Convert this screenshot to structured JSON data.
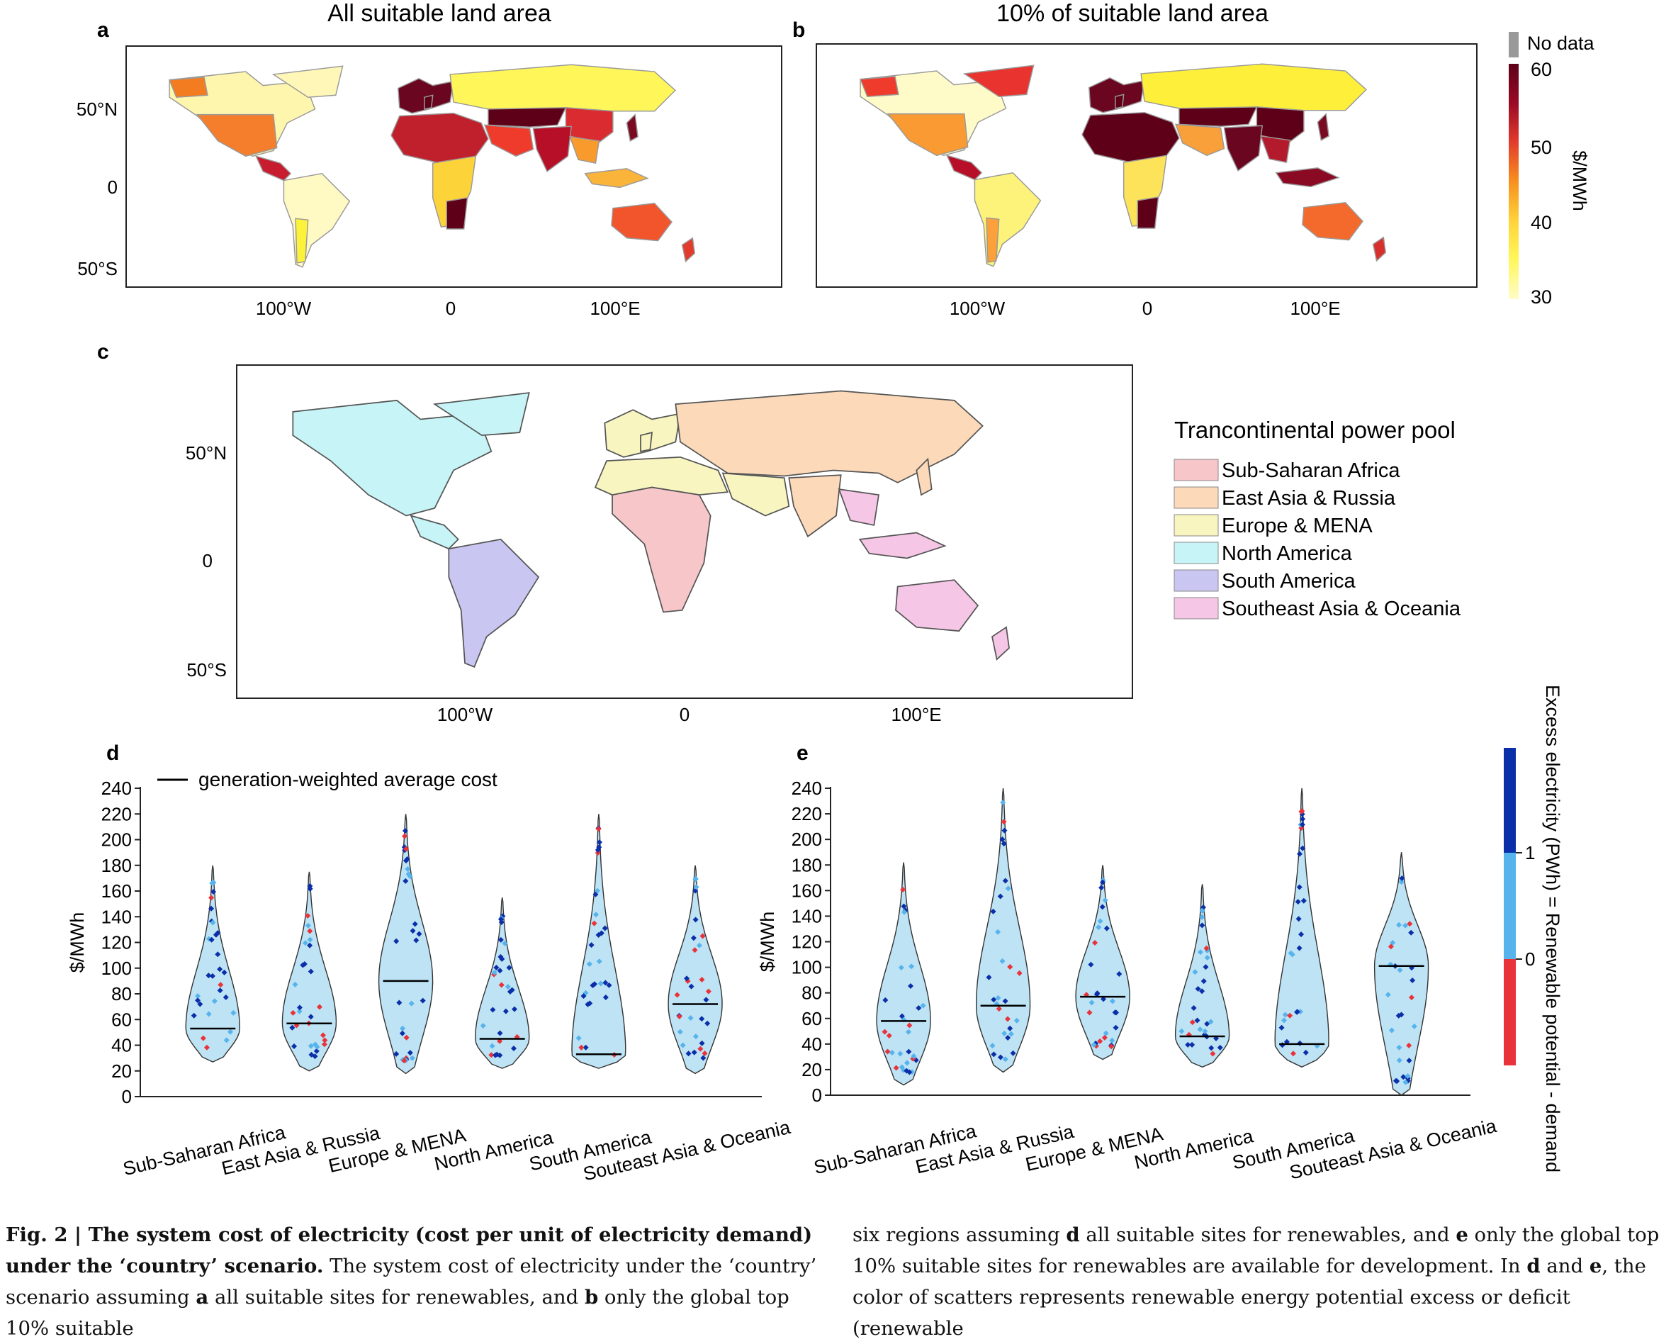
{
  "panels": {
    "a": {
      "letter": "a",
      "title": "All suitable land area",
      "lat_ticks": [
        "50°N",
        "0",
        "50°S"
      ],
      "lon_ticks": [
        "100°W",
        "0",
        "100°E"
      ]
    },
    "b": {
      "letter": "b",
      "title": "10% of suitable land area",
      "lat_ticks": [
        "50°N",
        "0",
        "50°S"
      ],
      "lon_ticks": [
        "100°W",
        "0",
        "100°E"
      ]
    },
    "c": {
      "letter": "c",
      "lat_ticks": [
        "50°N",
        "0",
        "50°S"
      ],
      "lon_ticks": [
        "100°W",
        "0",
        "100°E"
      ],
      "legend_title": "Trancontinental power pool",
      "legend_items": [
        {
          "label": "Sub-Saharan Africa",
          "color": "#f7c6c9"
        },
        {
          "label": "East Asia & Russia",
          "color": "#fbd9b9"
        },
        {
          "label": "Europe & MENA",
          "color": "#f8f5c0"
        },
        {
          "label": "North America",
          "color": "#c7f4f6"
        },
        {
          "label": "South America",
          "color": "#c9c6f1"
        },
        {
          "label": "Southeast Asia & Oceania",
          "color": "#f6c6e6"
        }
      ]
    },
    "d": {
      "letter": "d"
    },
    "e": {
      "letter": "e"
    }
  },
  "colorbar_maps": {
    "nodata_label": "No data",
    "nodata_color": "#999999",
    "unit": "$/MWh",
    "ticks": [
      "60",
      "50",
      "40",
      "30"
    ],
    "colors": [
      "#5e0018",
      "#b2102b",
      "#ef3b2c",
      "#f77b1f",
      "#fdb63c",
      "#feef3a",
      "#fffbb0"
    ]
  },
  "colorbar_scatter": {
    "title": "Excess electricity (PWh) = Renewable potential - demand",
    "ticks": [
      "1",
      "0"
    ],
    "colors": {
      "high": "#0b2fa8",
      "mid": "#57b3ec",
      "low": "#e8333a"
    }
  },
  "violin_legend": "generation-weighted average cost",
  "chart_data": [
    {
      "panel": "d",
      "type": "violin",
      "ylabel": "$/MWh",
      "ylim": [
        0,
        240
      ],
      "yticks": [
        "0",
        "20",
        "40",
        "60",
        "80",
        "100",
        "120",
        "140",
        "160",
        "180",
        "200",
        "220",
        "240"
      ],
      "categories": [
        "Sub-Saharan Africa",
        "East Asia & Russia",
        "Europe & MENA",
        "North America",
        "South America",
        "Souteast Asia & Oceania"
      ],
      "violin_range": [
        [
          27,
          180
        ],
        [
          20,
          175
        ],
        [
          18,
          220
        ],
        [
          22,
          155
        ],
        [
          22,
          220
        ],
        [
          18,
          180
        ]
      ],
      "weighted_average": [
        53,
        57,
        90,
        45,
        33,
        72
      ]
    },
    {
      "panel": "e",
      "type": "violin",
      "ylabel": "$/MWh",
      "ylim": [
        0,
        240
      ],
      "yticks": [
        "0",
        "20",
        "40",
        "60",
        "80",
        "100",
        "120",
        "140",
        "160",
        "180",
        "200",
        "220",
        "240"
      ],
      "categories": [
        "Sub-Saharan Africa",
        "East Asia & Russia",
        "Europe & MENA",
        "North America",
        "South America",
        "Souteast Asia & Oceania"
      ],
      "violin_range": [
        [
          8,
          182
        ],
        [
          18,
          240
        ],
        [
          28,
          180
        ],
        [
          22,
          165
        ],
        [
          22,
          240
        ],
        [
          0,
          190
        ]
      ],
      "weighted_average": [
        58,
        70,
        77,
        46,
        40,
        101
      ]
    }
  ],
  "caption": {
    "fig_label": "Fig. 2 | ",
    "fig_title": "The system cost of electricity (cost per unit of electricity demand) under the ‘country’ scenario.",
    "left_text_1": " The system cost of electricity under the ‘country’ scenario assuming ",
    "a": "a",
    "left_text_2": " all suitable sites for renewables, and ",
    "b": "b",
    "left_text_3": " only the global top 10% suitable",
    "right_text_1": "six regions assuming ",
    "d": "d",
    "right_text_2": " all suitable sites for renewables, and ",
    "e": "e",
    "right_text_3": " only the global top 10% suitable sites for renewables are available for development. In ",
    "d2": "d",
    "right_text_4": " and ",
    "e2": "e",
    "right_text_5": ", the color of scatters represents renewable energy potential excess or deficit (renewable"
  }
}
